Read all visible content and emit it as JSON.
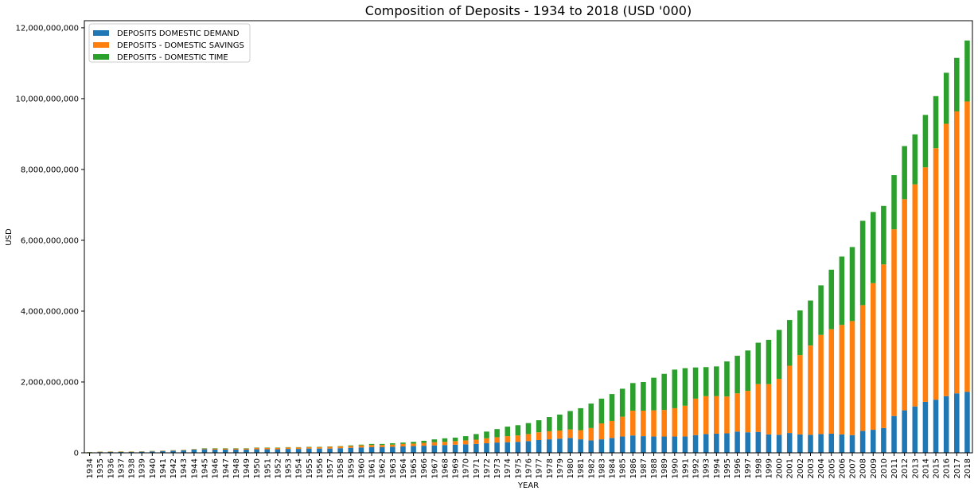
{
  "chart_data": {
    "type": "bar",
    "stacked": true,
    "title": "Composition of Deposits - 1934 to 2018 (USD '000)",
    "xlabel": "YEAR",
    "ylabel": "USD",
    "ylim": [
      0,
      12200000000
    ],
    "yticks": [
      0,
      2000000000,
      4000000000,
      6000000000,
      8000000000,
      10000000000,
      12000000000
    ],
    "ytick_labels": [
      "0",
      "2,000,000,000",
      "4,000,000,000",
      "6,000,000,000",
      "8,000,000,000",
      "10,000,000,000",
      "12,000,000,000"
    ],
    "grid": false,
    "legend_position": "top-left",
    "categories": [
      "1934",
      "1935",
      "1936",
      "1937",
      "1938",
      "1939",
      "1940",
      "1941",
      "1942",
      "1943",
      "1944",
      "1945",
      "1946",
      "1947",
      "1948",
      "1949",
      "1950",
      "1951",
      "1952",
      "1953",
      "1954",
      "1955",
      "1956",
      "1957",
      "1958",
      "1959",
      "1960",
      "1961",
      "1962",
      "1963",
      "1964",
      "1965",
      "1966",
      "1967",
      "1968",
      "1969",
      "1970",
      "1971",
      "1972",
      "1973",
      "1974",
      "1975",
      "1976",
      "1977",
      "1978",
      "1979",
      "1980",
      "1981",
      "1982",
      "1983",
      "1984",
      "1985",
      "1986",
      "1987",
      "1988",
      "1989",
      "1990",
      "1991",
      "1992",
      "1993",
      "1994",
      "1995",
      "1996",
      "1997",
      "1998",
      "1999",
      "2000",
      "2001",
      "2002",
      "2003",
      "2004",
      "2005",
      "2006",
      "2007",
      "2008",
      "2009",
      "2010",
      "2011",
      "2012",
      "2013",
      "2014",
      "2015",
      "2016",
      "2017",
      "2018"
    ],
    "series": [
      {
        "name": "DEPOSITS DOMESTIC DEMAND",
        "color": "#1f77b4",
        "values": [
          10000000,
          20000000,
          22000000,
          24000000,
          22000000,
          30000000,
          40000000,
          50000000,
          60000000,
          70000000,
          90000000,
          100000000,
          90000000,
          90000000,
          90000000,
          90000000,
          100000000,
          100000000,
          100000000,
          110000000,
          110000000,
          120000000,
          120000000,
          120000000,
          130000000,
          140000000,
          150000000,
          160000000,
          160000000,
          170000000,
          180000000,
          190000000,
          200000000,
          210000000,
          220000000,
          230000000,
          240000000,
          250000000,
          270000000,
          290000000,
          300000000,
          310000000,
          330000000,
          360000000,
          380000000,
          400000000,
          420000000,
          380000000,
          350000000,
          380000000,
          420000000,
          460000000,
          490000000,
          470000000,
          460000000,
          460000000,
          460000000,
          460000000,
          500000000,
          530000000,
          540000000,
          550000000,
          600000000,
          580000000,
          590000000,
          520000000,
          510000000,
          560000000,
          520000000,
          510000000,
          530000000,
          540000000,
          520000000,
          500000000,
          620000000,
          650000000,
          700000000,
          1040000000,
          1200000000,
          1310000000,
          1440000000,
          1500000000,
          1600000000,
          1680000000,
          1720000000
        ]
      },
      {
        "name": "DEPOSITS - DOMESTIC SAVINGS",
        "color": "#ff7f0e",
        "values": [
          5000000,
          10000000,
          10000000,
          10000000,
          10000000,
          10000000,
          10000000,
          10000000,
          10000000,
          10000000,
          10000000,
          20000000,
          30000000,
          30000000,
          30000000,
          30000000,
          40000000,
          40000000,
          40000000,
          40000000,
          40000000,
          40000000,
          40000000,
          50000000,
          50000000,
          50000000,
          60000000,
          60000000,
          60000000,
          60000000,
          70000000,
          70000000,
          80000000,
          90000000,
          90000000,
          100000000,
          110000000,
          120000000,
          140000000,
          150000000,
          170000000,
          180000000,
          200000000,
          220000000,
          230000000,
          230000000,
          240000000,
          260000000,
          350000000,
          450000000,
          480000000,
          560000000,
          700000000,
          720000000,
          740000000,
          750000000,
          800000000,
          870000000,
          1030000000,
          1070000000,
          1060000000,
          1040000000,
          1080000000,
          1170000000,
          1350000000,
          1420000000,
          1580000000,
          1900000000,
          2240000000,
          2520000000,
          2800000000,
          2950000000,
          3090000000,
          3220000000,
          3550000000,
          4140000000,
          4620000000,
          5270000000,
          5960000000,
          6270000000,
          6620000000,
          7100000000,
          7690000000,
          7960000000,
          8200000000
        ]
      },
      {
        "name": "DEPOSITS - DOMESTIC TIME",
        "color": "#2ca02c",
        "values": [
          5000000,
          5000000,
          5000000,
          5000000,
          5000000,
          5000000,
          5000000,
          5000000,
          5000000,
          5000000,
          5000000,
          10000000,
          10000000,
          10000000,
          10000000,
          10000000,
          10000000,
          10000000,
          10000000,
          10000000,
          10000000,
          10000000,
          10000000,
          10000000,
          10000000,
          20000000,
          20000000,
          30000000,
          30000000,
          40000000,
          40000000,
          50000000,
          60000000,
          80000000,
          100000000,
          100000000,
          120000000,
          160000000,
          190000000,
          230000000,
          270000000,
          290000000,
          310000000,
          340000000,
          400000000,
          450000000,
          520000000,
          620000000,
          690000000,
          700000000,
          760000000,
          790000000,
          780000000,
          810000000,
          920000000,
          1020000000,
          1090000000,
          1060000000,
          880000000,
          820000000,
          840000000,
          990000000,
          1060000000,
          1140000000,
          1170000000,
          1250000000,
          1380000000,
          1290000000,
          1260000000,
          1270000000,
          1400000000,
          1680000000,
          1930000000,
          2090000000,
          2380000000,
          2010000000,
          1650000000,
          1530000000,
          1500000000,
          1410000000,
          1480000000,
          1470000000,
          1440000000,
          1510000000,
          1720000000
        ]
      }
    ]
  }
}
